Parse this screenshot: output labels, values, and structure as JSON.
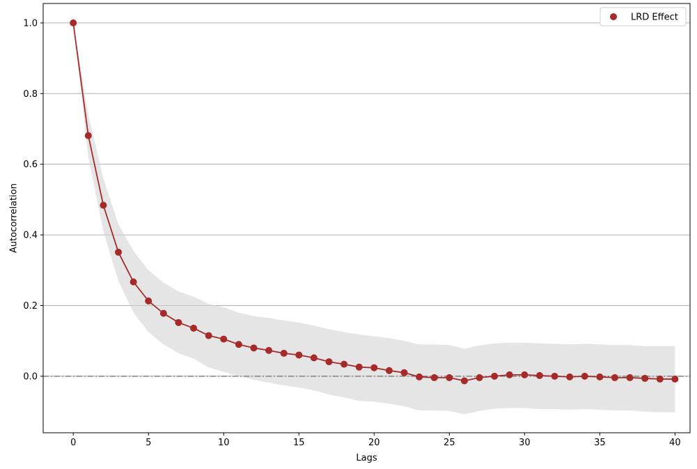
{
  "chart_data": {
    "type": "line",
    "title": "",
    "xlabel": "Lags",
    "ylabel": "Autocorrelation",
    "xlim": [
      -2,
      41
    ],
    "ylim": [
      -0.16,
      1.055
    ],
    "xticks": [
      0,
      5,
      10,
      15,
      20,
      25,
      30,
      35,
      40
    ],
    "yticks": [
      0.0,
      0.2,
      0.4,
      0.6,
      0.8,
      1.0
    ],
    "xtick_labels": [
      "0",
      "5",
      "10",
      "15",
      "20",
      "25",
      "30",
      "35",
      "40"
    ],
    "ytick_labels": [
      "0.0",
      "0.2",
      "0.4",
      "0.6",
      "0.8",
      "1.0"
    ],
    "grid": "horizontal",
    "legend_position": "top-right",
    "reference_line": {
      "y": 0.0,
      "style": "dash-dot",
      "color": "#808080"
    },
    "series": [
      {
        "name": "LRD Effect",
        "color": "#a52a2a",
        "x": [
          0,
          1,
          2,
          3,
          4,
          5,
          6,
          7,
          8,
          9,
          10,
          11,
          12,
          13,
          14,
          15,
          16,
          17,
          18,
          19,
          20,
          21,
          22,
          23,
          24,
          25,
          26,
          27,
          28,
          29,
          30,
          31,
          32,
          33,
          34,
          35,
          36,
          37,
          38,
          39,
          40
        ],
        "y": [
          1.0,
          0.681,
          0.484,
          0.351,
          0.267,
          0.213,
          0.178,
          0.152,
          0.136,
          0.115,
          0.105,
          0.09,
          0.08,
          0.073,
          0.065,
          0.06,
          0.052,
          0.041,
          0.034,
          0.026,
          0.024,
          0.016,
          0.01,
          -0.002,
          -0.004,
          -0.004,
          -0.013,
          -0.004,
          0.0,
          0.004,
          0.004,
          0.002,
          0.0,
          -0.002,
          0.0,
          -0.002,
          -0.004,
          -0.004,
          -0.006,
          -0.008,
          -0.008
        ]
      }
    ],
    "confidence_band": {
      "color": "#d3d3d3",
      "upper": [
        1.0,
        0.74,
        0.56,
        0.43,
        0.355,
        0.3,
        0.265,
        0.24,
        0.225,
        0.205,
        0.195,
        0.18,
        0.17,
        0.165,
        0.158,
        0.152,
        0.143,
        0.133,
        0.125,
        0.118,
        0.113,
        0.108,
        0.1,
        0.09,
        0.09,
        0.088,
        0.078,
        0.087,
        0.093,
        0.095,
        0.095,
        0.093,
        0.092,
        0.09,
        0.092,
        0.09,
        0.088,
        0.088,
        0.085,
        0.085,
        0.085
      ],
      "lower": [
        1.0,
        0.62,
        0.41,
        0.27,
        0.18,
        0.125,
        0.09,
        0.065,
        0.05,
        0.025,
        0.012,
        0.0,
        -0.01,
        -0.018,
        -0.026,
        -0.032,
        -0.04,
        -0.052,
        -0.06,
        -0.07,
        -0.072,
        -0.078,
        -0.085,
        -0.097,
        -0.097,
        -0.098,
        -0.108,
        -0.098,
        -0.092,
        -0.09,
        -0.09,
        -0.093,
        -0.093,
        -0.095,
        -0.093,
        -0.095,
        -0.097,
        -0.097,
        -0.1,
        -0.102,
        -0.102
      ]
    }
  }
}
